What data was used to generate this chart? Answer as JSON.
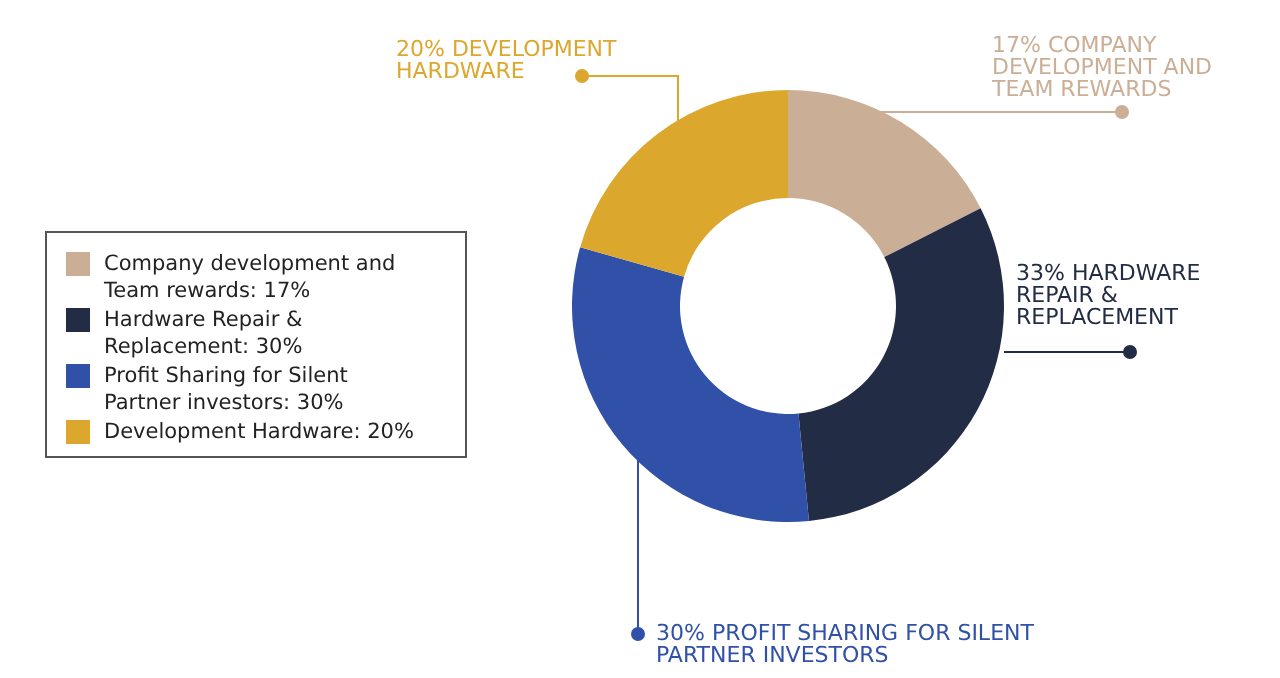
{
  "chart_data": {
    "type": "donut",
    "categories": [
      "Company development and Team rewards: 17%",
      "Hardware Repair & Replacement: 30%",
      "Profit Sharing for Silent Partner investors: 30%",
      "Development Hardware: 20%"
    ],
    "values": [
      17,
      30,
      30,
      20
    ],
    "colors": [
      "#cbae96",
      "#232c45",
      "#3150a7",
      "#dca72d"
    ],
    "legend": "left",
    "annotations": [
      "17% COMPANY DEVELOPMENT AND TEAM REWARDS",
      "33% HARDWARE REPAIR & REPLACEMENT",
      "30% PROFIT SHARING FOR SILENT PARTNER INVESTORS",
      "20% DEVELOPMENT HARDWARE"
    ]
  }
}
